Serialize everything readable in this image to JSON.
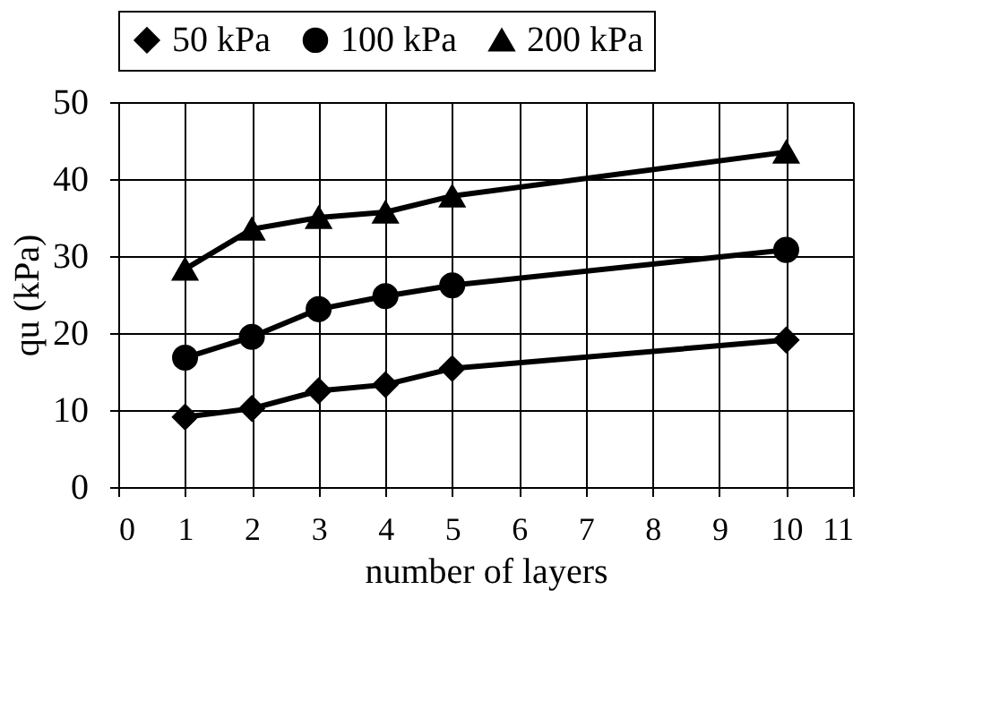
{
  "chart_data": {
    "type": "line",
    "xlabel": "number of layers",
    "ylabel": "qu (kPa)",
    "x": [
      1,
      2,
      3,
      4,
      5,
      10
    ],
    "series": [
      {
        "name": "50 kPa",
        "color": "#000000",
        "marker": "diamond",
        "values": [
          9.1,
          10.2,
          12.5,
          13.3,
          15.4,
          19.1
        ]
      },
      {
        "name": "100 kPa",
        "color": "#000000",
        "marker": "circle",
        "values": [
          16.8,
          19.5,
          23.1,
          24.8,
          26.2,
          30.8
        ]
      },
      {
        "name": "200 kPa",
        "color": "#000000",
        "marker": "triangle",
        "values": [
          28.3,
          33.5,
          35,
          35.7,
          37.8,
          43.5
        ]
      }
    ],
    "xlim": [
      0,
      11
    ],
    "xticks": [
      0,
      1,
      2,
      3,
      4,
      5,
      6,
      7,
      8,
      9,
      10,
      11
    ],
    "ylim": [
      0,
      50
    ],
    "yticks": [
      0,
      10,
      20,
      30,
      40,
      50
    ],
    "grid": true,
    "legend": "top",
    "line_style": "solid"
  }
}
